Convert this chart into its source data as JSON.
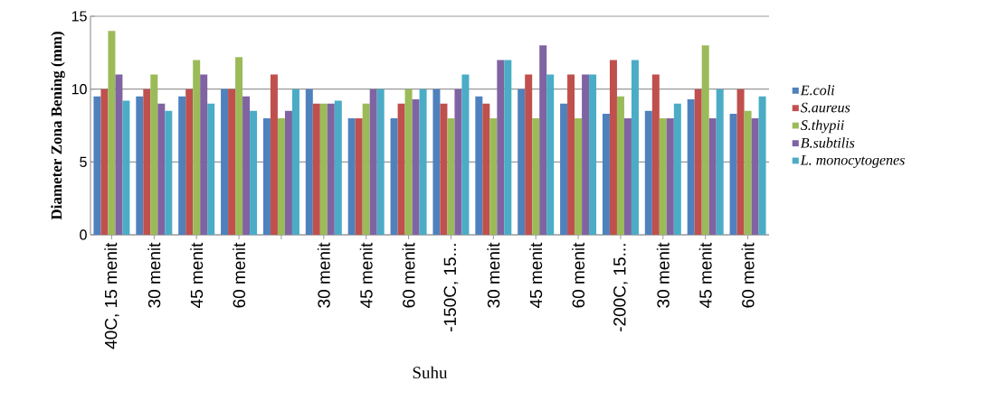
{
  "chart_data": {
    "type": "bar",
    "xlabel": "Suhu",
    "ylabel": "Diameter Zona Bening (mm)",
    "categories": [
      "40C, 15 menit",
      "30 menit",
      "45 menit",
      "60 menit",
      null,
      "30 menit",
      "45 menit",
      "60 menit",
      "-150C, 15...",
      "30 menit",
      "45 menit",
      "60 menit",
      "-200C, 15...",
      "30 menit",
      "45 menit",
      "60 menit"
    ],
    "series": [
      {
        "name": "E.coli",
        "color": "#4f81bd",
        "values": [
          9.5,
          9.5,
          9.5,
          10,
          8,
          10,
          8,
          8,
          10,
          9.5,
          10,
          9,
          8.3,
          8.5,
          9.3,
          8.3
        ]
      },
      {
        "name": "S.aureus",
        "color": "#c0504d",
        "values": [
          10,
          10,
          10,
          10,
          11,
          9,
          8,
          9,
          9,
          9,
          11,
          11,
          12,
          11,
          10,
          10
        ]
      },
      {
        "name": "S.thypii",
        "color": "#9bbb59",
        "values": [
          14,
          11,
          12,
          12.2,
          8,
          9,
          9,
          10,
          8,
          8,
          8,
          8,
          9.5,
          8,
          13,
          8.5
        ]
      },
      {
        "name": "B.subtilis",
        "color": "#8064a2",
        "values": [
          11,
          9,
          11,
          9.5,
          8.5,
          9,
          10,
          9.3,
          10,
          12,
          13,
          11,
          8,
          8,
          8,
          8
        ]
      },
      {
        "name": "L. monocytogenes",
        "color": "#4bacc6",
        "values": [
          9.2,
          8.5,
          9,
          8.5,
          10,
          9.2,
          10,
          10,
          11,
          12,
          11,
          11,
          12,
          9,
          10,
          9.5
        ]
      }
    ],
    "ylim": [
      0,
      15
    ],
    "yticks": [
      0,
      5,
      10,
      15
    ],
    "grid": "y",
    "legend": "right"
  }
}
